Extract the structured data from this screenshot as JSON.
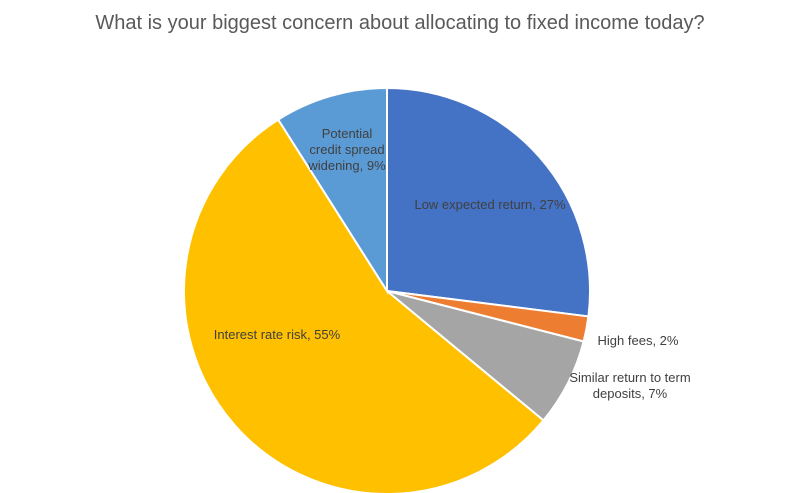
{
  "chart_data": {
    "type": "pie",
    "title": "What is your biggest concern about allocating to fixed income today?",
    "categories": [
      "Low expected return",
      "High fees",
      "Similar return to term deposits",
      "Interest rate risk",
      "Potential credit spread widening"
    ],
    "values": [
      27,
      2,
      7,
      55,
      9
    ],
    "value_labels": [
      "Low expected return, 27%",
      "High fees, 2%",
      "Similar return to term deposits, 7%",
      "Interest rate risk, 55%",
      "Potential credit spread widening, 9%"
    ],
    "colors": [
      "#4472c4",
      "#ed7d31",
      "#a5a5a5",
      "#ffc000",
      "#5b9bd5"
    ]
  }
}
